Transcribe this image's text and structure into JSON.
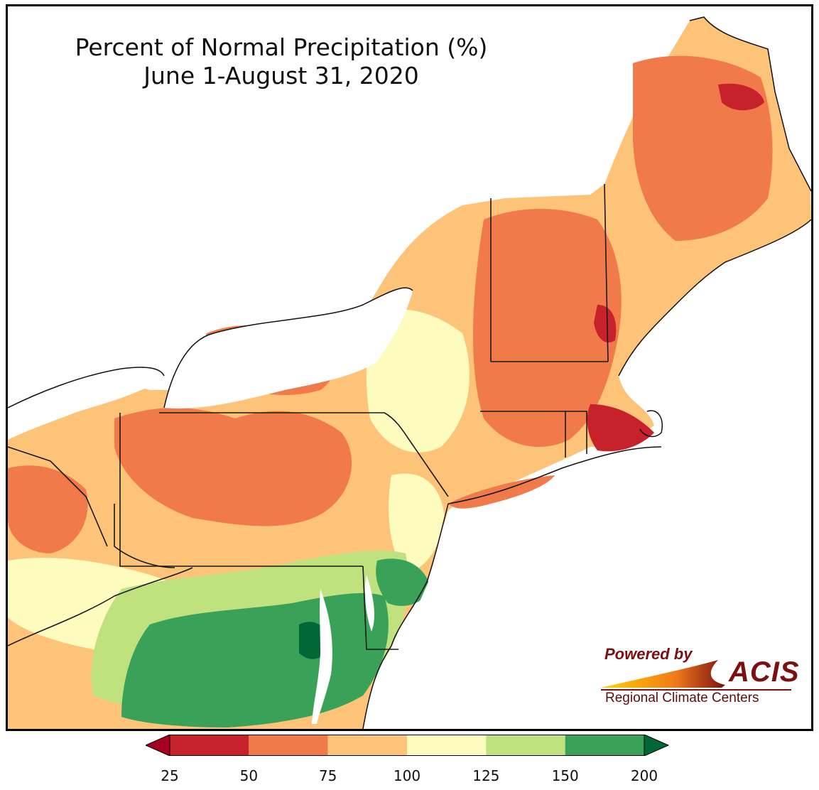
{
  "title": {
    "line1": "Percent of Normal Precipitation (%)",
    "line2": "June 1-August 31, 2020"
  },
  "legend": {
    "ticks": [
      "25",
      "50",
      "75",
      "100",
      "125",
      "150",
      "200"
    ],
    "bins": [
      {
        "range": "25-50",
        "color": "#c7212b"
      },
      {
        "range": "50-75",
        "color": "#f07a4a"
      },
      {
        "range": "75-100",
        "color": "#fcc379"
      },
      {
        "range": "100-125",
        "color": "#fefbbe"
      },
      {
        "range": "125-150",
        "color": "#bfe27f"
      },
      {
        "range": "150-200",
        "color": "#3aa258"
      }
    ],
    "under_color": "#a50021",
    "over_color": "#006837"
  },
  "logo": {
    "powered_by": "Powered by",
    "acis": "ACIS",
    "subtitle": "Regional Climate Centers"
  },
  "colors": {
    "border": "#000000",
    "water": "#ffffff",
    "state_line": "#1a1a1a",
    "county_line": "#9a9a9a"
  }
}
